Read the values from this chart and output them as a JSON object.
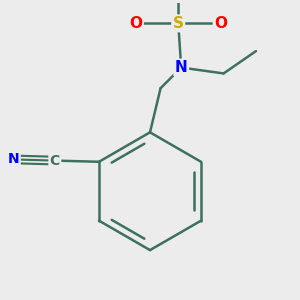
{
  "background_color": "#ececec",
  "bond_color": "#3d7060",
  "bond_width": 1.8,
  "atom_colors": {
    "N": "#0000ff",
    "O": "#ff0000",
    "S": "#ccaa00",
    "C": "#3d7060",
    "default": "#3d7060"
  },
  "figsize": [
    3.0,
    3.0
  ],
  "dpi": 100
}
